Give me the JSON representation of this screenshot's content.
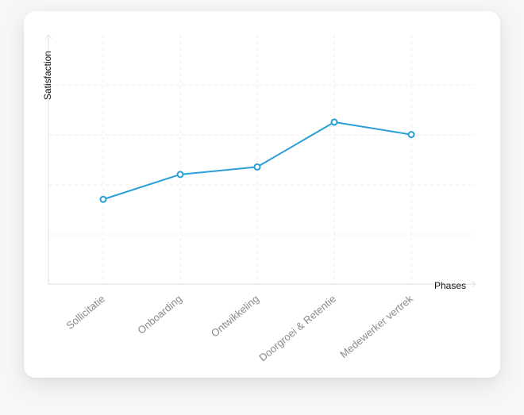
{
  "chart_data": {
    "type": "line",
    "xlabel": "Phases",
    "ylabel": "Satisfaction",
    "categories": [
      "Sollicitatie",
      "Onboarding",
      "Ontwikkeling",
      "Doorgroei & Retentie",
      "Medewerker vertrek"
    ],
    "series": [
      {
        "values": [
          3.4,
          4.4,
          4.7,
          6.5,
          6.0
        ]
      }
    ],
    "ylim": [
      0,
      10
    ],
    "grid": true,
    "line_color": "#2a9fd6"
  }
}
